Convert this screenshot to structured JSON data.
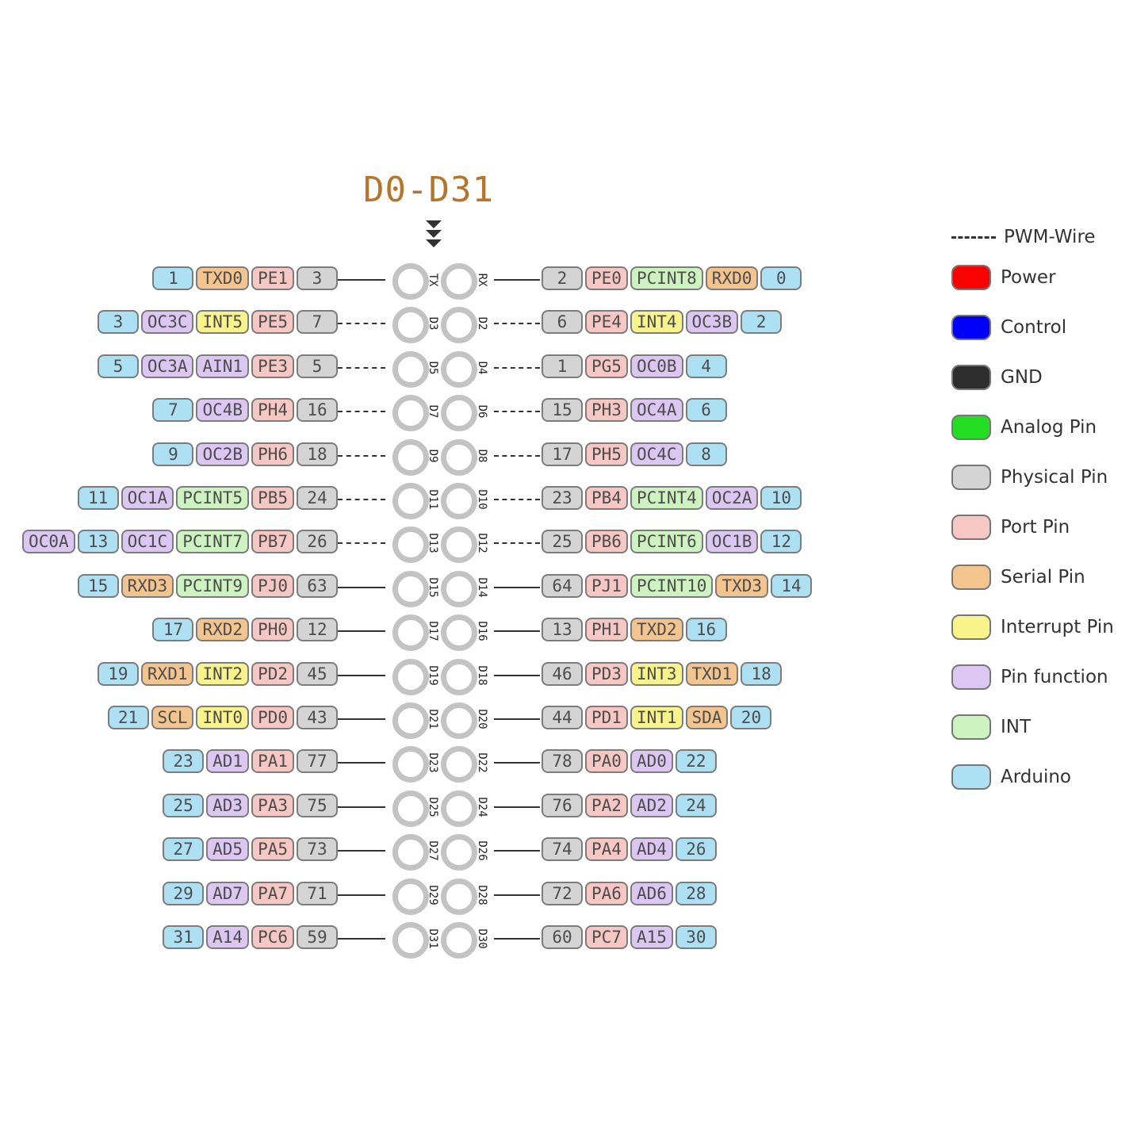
{
  "title": "D0-D31",
  "colors": {
    "arduino": "#aee0f4",
    "physical": "#d4d4d4",
    "port": "#f6c7c3",
    "serial": "#f4c48f",
    "interrupt": "#f8f38a",
    "function": "#dcc6f2",
    "int": "#cdf4c0"
  },
  "legend": {
    "pwm_label": "PWM-Wire",
    "items": [
      {
        "label": "Power",
        "color": "#ff0000"
      },
      {
        "label": "Control",
        "color": "#0000ff"
      },
      {
        "label": "GND",
        "color": "#2d2d2d"
      },
      {
        "label": "Analog Pin",
        "color": "#22dd22"
      },
      {
        "label": "Physical Pin",
        "color": "#d4d4d4"
      },
      {
        "label": "Port Pin",
        "color": "#f6c7c3"
      },
      {
        "label": "Serial Pin",
        "color": "#f4c48f"
      },
      {
        "label": "Interrupt Pin",
        "color": "#f8f38a"
      },
      {
        "label": "Pin function",
        "color": "#dcc6f2"
      },
      {
        "label": "INT",
        "color": "#cdf4c0"
      },
      {
        "label": "Arduino",
        "color": "#aee0f4"
      }
    ]
  },
  "rows": [
    {
      "left_pin": "TX",
      "right_pin": "RX",
      "left_pwm": false,
      "right_pwm": false,
      "left": [
        [
          "arduino",
          "1"
        ],
        [
          "serial",
          "TXD0"
        ],
        [
          "port",
          "PE1"
        ],
        [
          "physical",
          "3"
        ]
      ],
      "right": [
        [
          "physical",
          "2"
        ],
        [
          "port",
          "PE0"
        ],
        [
          "int",
          "PCINT8"
        ],
        [
          "serial",
          "RXD0"
        ],
        [
          "arduino",
          "0"
        ]
      ]
    },
    {
      "left_pin": "D3",
      "right_pin": "D2",
      "left_pwm": true,
      "right_pwm": true,
      "left": [
        [
          "arduino",
          "3"
        ],
        [
          "function",
          "OC3C"
        ],
        [
          "interrupt",
          "INT5"
        ],
        [
          "port",
          "PE5"
        ],
        [
          "physical",
          "7"
        ]
      ],
      "right": [
        [
          "physical",
          "6"
        ],
        [
          "port",
          "PE4"
        ],
        [
          "interrupt",
          "INT4"
        ],
        [
          "function",
          "OC3B"
        ],
        [
          "arduino",
          "2"
        ]
      ]
    },
    {
      "left_pin": "D5",
      "right_pin": "D4",
      "left_pwm": true,
      "right_pwm": true,
      "left": [
        [
          "arduino",
          "5"
        ],
        [
          "function",
          "OC3A"
        ],
        [
          "function",
          "AIN1"
        ],
        [
          "port",
          "PE3"
        ],
        [
          "physical",
          "5"
        ]
      ],
      "right": [
        [
          "physical",
          "1"
        ],
        [
          "port",
          "PG5"
        ],
        [
          "function",
          "OC0B"
        ],
        [
          "arduino",
          "4"
        ]
      ]
    },
    {
      "left_pin": "D7",
      "right_pin": "D6",
      "left_pwm": true,
      "right_pwm": true,
      "left": [
        [
          "arduino",
          "7"
        ],
        [
          "function",
          "OC4B"
        ],
        [
          "port",
          "PH4"
        ],
        [
          "physical",
          "16"
        ]
      ],
      "right": [
        [
          "physical",
          "15"
        ],
        [
          "port",
          "PH3"
        ],
        [
          "function",
          "OC4A"
        ],
        [
          "arduino",
          "6"
        ]
      ]
    },
    {
      "left_pin": "D9",
      "right_pin": "D8",
      "left_pwm": true,
      "right_pwm": true,
      "left": [
        [
          "arduino",
          "9"
        ],
        [
          "function",
          "OC2B"
        ],
        [
          "port",
          "PH6"
        ],
        [
          "physical",
          "18"
        ]
      ],
      "right": [
        [
          "physical",
          "17"
        ],
        [
          "port",
          "PH5"
        ],
        [
          "function",
          "OC4C"
        ],
        [
          "arduino",
          "8"
        ]
      ]
    },
    {
      "left_pin": "D11",
      "right_pin": "D10",
      "left_pwm": true,
      "right_pwm": true,
      "left": [
        [
          "arduino",
          "11"
        ],
        [
          "function",
          "OC1A"
        ],
        [
          "int",
          "PCINT5"
        ],
        [
          "port",
          "PB5"
        ],
        [
          "physical",
          "24"
        ]
      ],
      "right": [
        [
          "physical",
          "23"
        ],
        [
          "port",
          "PB4"
        ],
        [
          "int",
          "PCINT4"
        ],
        [
          "function",
          "OC2A"
        ],
        [
          "arduino",
          "10"
        ]
      ]
    },
    {
      "left_pin": "D13",
      "right_pin": "D12",
      "left_pwm": true,
      "right_pwm": true,
      "left": [
        [
          "function",
          "OC0A"
        ],
        [
          "arduino",
          "13"
        ],
        [
          "function",
          "OC1C"
        ],
        [
          "int",
          "PCINT7"
        ],
        [
          "port",
          "PB7"
        ],
        [
          "physical",
          "26"
        ]
      ],
      "right": [
        [
          "physical",
          "25"
        ],
        [
          "port",
          "PB6"
        ],
        [
          "int",
          "PCINT6"
        ],
        [
          "function",
          "OC1B"
        ],
        [
          "arduino",
          "12"
        ]
      ]
    },
    {
      "left_pin": "D15",
      "right_pin": "D14",
      "left_pwm": false,
      "right_pwm": false,
      "left": [
        [
          "arduino",
          "15"
        ],
        [
          "serial",
          "RXD3"
        ],
        [
          "int",
          "PCINT9"
        ],
        [
          "port",
          "PJ0"
        ],
        [
          "physical",
          "63"
        ]
      ],
      "right": [
        [
          "physical",
          "64"
        ],
        [
          "port",
          "PJ1"
        ],
        [
          "int",
          "PCINT10"
        ],
        [
          "serial",
          "TXD3"
        ],
        [
          "arduino",
          "14"
        ]
      ]
    },
    {
      "left_pin": "D17",
      "right_pin": "D16",
      "left_pwm": false,
      "right_pwm": false,
      "left": [
        [
          "arduino",
          "17"
        ],
        [
          "serial",
          "RXD2"
        ],
        [
          "port",
          "PH0"
        ],
        [
          "physical",
          "12"
        ]
      ],
      "right": [
        [
          "physical",
          "13"
        ],
        [
          "port",
          "PH1"
        ],
        [
          "serial",
          "TXD2"
        ],
        [
          "arduino",
          "16"
        ]
      ]
    },
    {
      "left_pin": "D19",
      "right_pin": "D18",
      "left_pwm": false,
      "right_pwm": false,
      "left": [
        [
          "arduino",
          "19"
        ],
        [
          "serial",
          "RXD1"
        ],
        [
          "interrupt",
          "INT2"
        ],
        [
          "port",
          "PD2"
        ],
        [
          "physical",
          "45"
        ]
      ],
      "right": [
        [
          "physical",
          "46"
        ],
        [
          "port",
          "PD3"
        ],
        [
          "interrupt",
          "INT3"
        ],
        [
          "serial",
          "TXD1"
        ],
        [
          "arduino",
          "18"
        ]
      ]
    },
    {
      "left_pin": "D21",
      "right_pin": "D20",
      "left_pwm": false,
      "right_pwm": false,
      "left": [
        [
          "arduino",
          "21"
        ],
        [
          "serial",
          "SCL"
        ],
        [
          "interrupt",
          "INT0"
        ],
        [
          "port",
          "PD0"
        ],
        [
          "physical",
          "43"
        ]
      ],
      "right": [
        [
          "physical",
          "44"
        ],
        [
          "port",
          "PD1"
        ],
        [
          "interrupt",
          "INT1"
        ],
        [
          "serial",
          "SDA"
        ],
        [
          "arduino",
          "20"
        ]
      ]
    },
    {
      "left_pin": "D23",
      "right_pin": "D22",
      "left_pwm": false,
      "right_pwm": false,
      "left": [
        [
          "arduino",
          "23"
        ],
        [
          "function",
          "AD1"
        ],
        [
          "port",
          "PA1"
        ],
        [
          "physical",
          "77"
        ]
      ],
      "right": [
        [
          "physical",
          "78"
        ],
        [
          "port",
          "PA0"
        ],
        [
          "function",
          "AD0"
        ],
        [
          "arduino",
          "22"
        ]
      ]
    },
    {
      "left_pin": "D25",
      "right_pin": "D24",
      "left_pwm": false,
      "right_pwm": false,
      "left": [
        [
          "arduino",
          "25"
        ],
        [
          "function",
          "AD3"
        ],
        [
          "port",
          "PA3"
        ],
        [
          "physical",
          "75"
        ]
      ],
      "right": [
        [
          "physical",
          "76"
        ],
        [
          "port",
          "PA2"
        ],
        [
          "function",
          "AD2"
        ],
        [
          "arduino",
          "24"
        ]
      ]
    },
    {
      "left_pin": "D27",
      "right_pin": "D26",
      "left_pwm": false,
      "right_pwm": false,
      "left": [
        [
          "arduino",
          "27"
        ],
        [
          "function",
          "AD5"
        ],
        [
          "port",
          "PA5"
        ],
        [
          "physical",
          "73"
        ]
      ],
      "right": [
        [
          "physical",
          "74"
        ],
        [
          "port",
          "PA4"
        ],
        [
          "function",
          "AD4"
        ],
        [
          "arduino",
          "26"
        ]
      ]
    },
    {
      "left_pin": "D29",
      "right_pin": "D28",
      "left_pwm": false,
      "right_pwm": false,
      "left": [
        [
          "arduino",
          "29"
        ],
        [
          "function",
          "AD7"
        ],
        [
          "port",
          "PA7"
        ],
        [
          "physical",
          "71"
        ]
      ],
      "right": [
        [
          "physical",
          "72"
        ],
        [
          "port",
          "PA6"
        ],
        [
          "function",
          "AD6"
        ],
        [
          "arduino",
          "28"
        ]
      ]
    },
    {
      "left_pin": "D31",
      "right_pin": "D30",
      "left_pwm": false,
      "right_pwm": false,
      "left": [
        [
          "arduino",
          "31"
        ],
        [
          "function",
          "A14"
        ],
        [
          "port",
          "PC6"
        ],
        [
          "physical",
          "59"
        ]
      ],
      "right": [
        [
          "physical",
          "60"
        ],
        [
          "port",
          "PC7"
        ],
        [
          "function",
          "A15"
        ],
        [
          "arduino",
          "30"
        ]
      ]
    }
  ]
}
